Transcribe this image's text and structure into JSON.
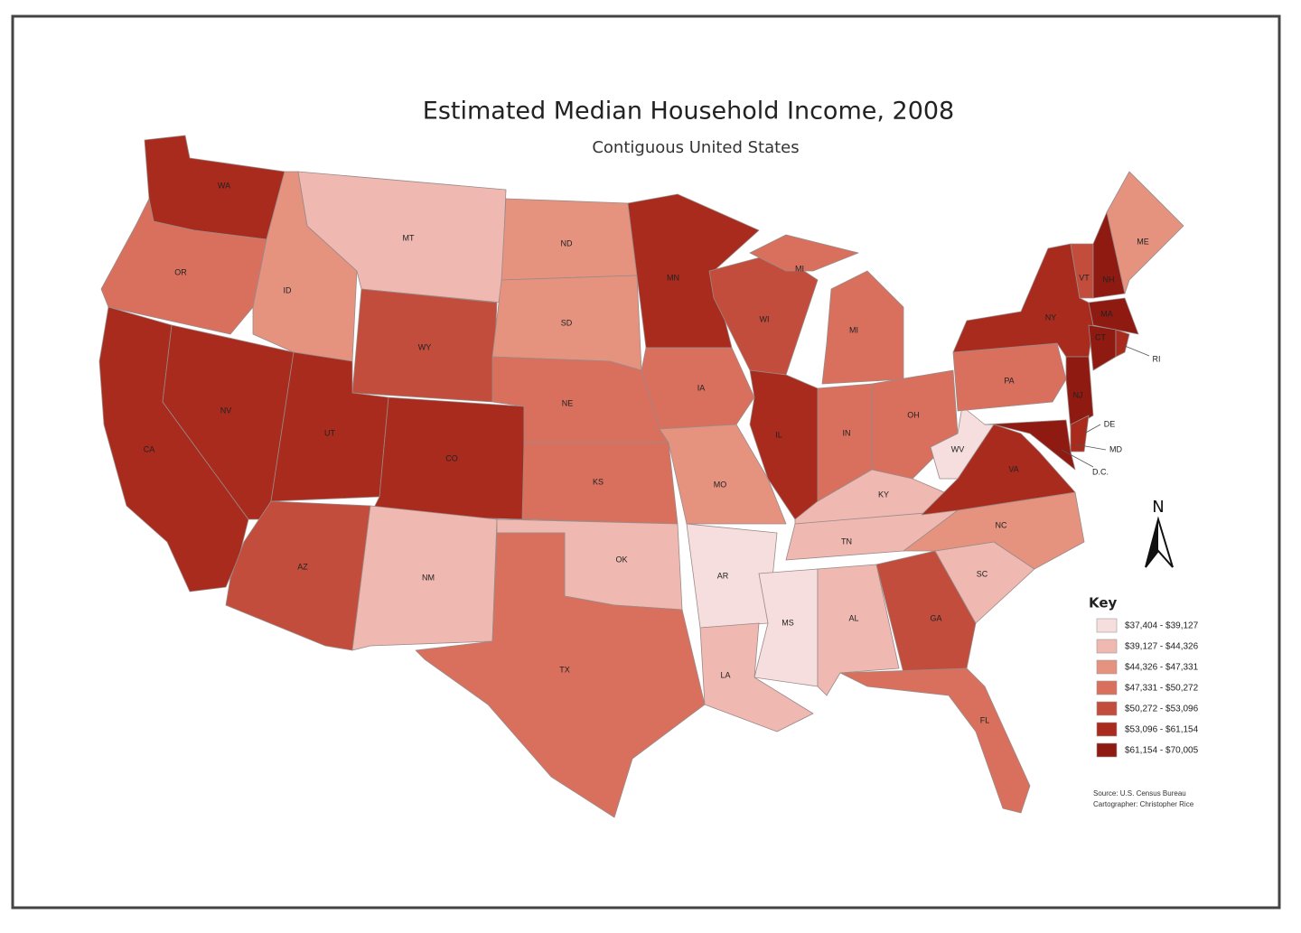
{
  "title": "Estimated Median Household Income, 2008",
  "subtitle": "Contiguous United States",
  "states": [
    {
      "label": "WA",
      "color": "#a82b1e"
    },
    {
      "label": "OR",
      "color": "#d9705e"
    },
    {
      "label": "CA",
      "color": "#a82b1e"
    },
    {
      "label": "NV",
      "color": "#a82b1e"
    },
    {
      "label": "ID",
      "color": "#e5937f"
    },
    {
      "label": "MT",
      "color": "#efb8b0"
    },
    {
      "label": "WY",
      "color": "#c24d3c"
    },
    {
      "label": "UT",
      "color": "#a82b1e"
    },
    {
      "label": "CO",
      "color": "#a82b1e"
    },
    {
      "label": "AZ",
      "color": "#c24d3c"
    },
    {
      "label": "NM",
      "color": "#efb8b0"
    },
    {
      "label": "ND",
      "color": "#e5937f"
    },
    {
      "label": "SD",
      "color": "#e5937f"
    },
    {
      "label": "NE",
      "color": "#d9705e"
    },
    {
      "label": "KS",
      "color": "#d9705e"
    },
    {
      "label": "OK",
      "color": "#efb8b0"
    },
    {
      "label": "TX",
      "color": "#d9705e"
    },
    {
      "label": "MN",
      "color": "#a82b1e"
    },
    {
      "label": "IA",
      "color": "#d9705e"
    },
    {
      "label": "MO",
      "color": "#e5937f"
    },
    {
      "label": "AR",
      "color": "#f5dedd"
    },
    {
      "label": "LA",
      "color": "#efb8b0"
    },
    {
      "label": "WI",
      "color": "#c24d3c"
    },
    {
      "label": "IL",
      "color": "#a82b1e"
    },
    {
      "label": "MI",
      "color": "#d9705e"
    },
    {
      "label": "MI",
      "color": "#d9705e"
    },
    {
      "label": "IN",
      "color": "#d9705e"
    },
    {
      "label": "OH",
      "color": "#d9705e"
    },
    {
      "label": "KY",
      "color": "#efb8b0"
    },
    {
      "label": "TN",
      "color": "#efb8b0"
    },
    {
      "label": "MS",
      "color": "#f5dedd"
    },
    {
      "label": "AL",
      "color": "#efb8b0"
    },
    {
      "label": "GA",
      "color": "#c24d3c"
    },
    {
      "label": "FL",
      "color": "#d9705e"
    },
    {
      "label": "SC",
      "color": "#efb8b0"
    },
    {
      "label": "NC",
      "color": "#e5937f"
    },
    {
      "label": "VA",
      "color": "#a82b1e"
    },
    {
      "label": "WV",
      "color": "#f5dedd"
    },
    {
      "label": "PA",
      "color": "#d9705e"
    },
    {
      "label": "NY",
      "color": "#a82b1e"
    },
    {
      "label": "VT",
      "color": "#c24d3c"
    },
    {
      "label": "NH",
      "color": "#8e1a12"
    },
    {
      "label": "ME",
      "color": "#e5937f"
    },
    {
      "label": "MA",
      "color": "#8e1a12"
    },
    {
      "label": "CT",
      "color": "#8e1a12"
    },
    {
      "label": "RI",
      "color": "#a82b1e"
    },
    {
      "label": "NJ",
      "color": "#8e1a12"
    },
    {
      "label": "DE",
      "color": "#a82b1e"
    },
    {
      "label": "MD",
      "color": "#8e1a12"
    }
  ],
  "dc_label": "D.C.",
  "north": "N",
  "key": {
    "title": "Key",
    "items": [
      {
        "label": "$37,404 - $39,127",
        "color": "#f5dedd"
      },
      {
        "label": "$39,127 - $44,326",
        "color": "#efb8b0"
      },
      {
        "label": "$44,326 - $47,331",
        "color": "#e5937f"
      },
      {
        "label": "$47,331 - $50,272",
        "color": "#d9705e"
      },
      {
        "label": "$50,272 - $53,096",
        "color": "#c24d3c"
      },
      {
        "label": "$53,096 - $61,154",
        "color": "#a82b1e"
      },
      {
        "label": "$61,154 - $70,005",
        "color": "#8e1a12"
      }
    ]
  },
  "source": [
    "Source: U.S. Census Bureau",
    "Cartographer: Christopher Rice"
  ]
}
